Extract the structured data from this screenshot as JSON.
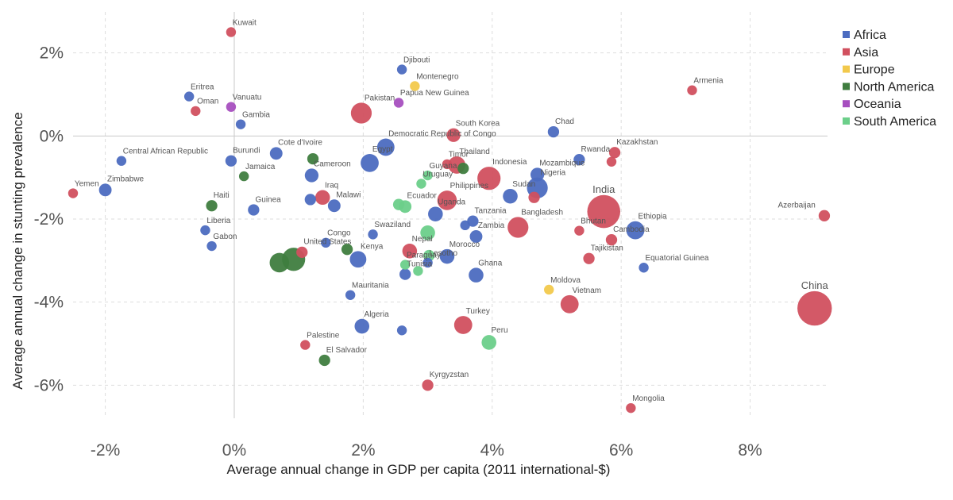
{
  "chart_data": {
    "type": "scatter",
    "xlabel": "Average annual change in GDP per capita (2011 international-$)",
    "ylabel": "Average annual change in stunting prevalence",
    "xlim": [
      -2.5,
      9.2
    ],
    "ylim": [
      -6.7,
      2.7
    ],
    "x_ticks": [
      -2,
      0,
      2,
      4,
      6,
      8
    ],
    "y_ticks": [
      2,
      0,
      -2,
      -4,
      -6
    ],
    "x_tick_labels": [
      "-2%",
      "0%",
      "2%",
      "4%",
      "6%",
      "8%"
    ],
    "y_tick_labels": [
      "2%",
      "0%",
      "-2%",
      "-4%",
      "-6%"
    ],
    "grid": true,
    "point_size": "population",
    "legend": {
      "placement": "top-right",
      "entries": [
        {
          "name": "Africa",
          "color": "#4c6cc0"
        },
        {
          "name": "Asia",
          "color": "#d1505f"
        },
        {
          "name": "Europe",
          "color": "#f2c94c"
        },
        {
          "name": "North America",
          "color": "#3f7d3f"
        },
        {
          "name": "Oceania",
          "color": "#a64fbf"
        },
        {
          "name": "South America",
          "color": "#6ccf8a"
        }
      ]
    },
    "points": [
      {
        "label": "Kuwait",
        "x": -0.05,
        "y": 2.5,
        "region": "Asia",
        "size": 1
      },
      {
        "label": "Djibouti",
        "x": 2.6,
        "y": 1.6,
        "region": "Africa",
        "size": 1
      },
      {
        "label": "Montenegro",
        "x": 2.8,
        "y": 1.2,
        "region": "Europe",
        "size": 1
      },
      {
        "label": "Armenia",
        "x": 7.1,
        "y": 1.1,
        "region": "Asia",
        "size": 1
      },
      {
        "label": "Eritrea",
        "x": -0.7,
        "y": 0.95,
        "region": "Africa",
        "size": 1
      },
      {
        "label": "Papua New Guinea",
        "x": 2.55,
        "y": 0.8,
        "region": "Oceania",
        "size": 1
      },
      {
        "label": "Vanuatu",
        "x": -0.05,
        "y": 0.7,
        "region": "Oceania",
        "size": 1
      },
      {
        "label": "Oman",
        "x": -0.6,
        "y": 0.6,
        "region": "Asia",
        "size": 1
      },
      {
        "label": "Pakistan",
        "x": 1.97,
        "y": 0.55,
        "region": "Asia",
        "size": 7
      },
      {
        "label": "Gambia",
        "x": 0.1,
        "y": 0.28,
        "region": "Africa",
        "size": 1
      },
      {
        "label": "Chad",
        "x": 4.95,
        "y": 0.1,
        "region": "Africa",
        "size": 1.5
      },
      {
        "label": "South Korea",
        "x": 3.4,
        "y": 0.02,
        "region": "Asia",
        "size": 2.5
      },
      {
        "label": "Democratic Republic of Congo",
        "x": 2.35,
        "y": -0.27,
        "region": "Africa",
        "size": 4.5
      },
      {
        "label": "Kazakhstan",
        "x": 5.9,
        "y": -0.4,
        "region": "Asia",
        "size": 1.5
      },
      {
        "label": "Central African Republic",
        "x": -1.75,
        "y": -0.6,
        "region": "Africa",
        "size": 1
      },
      {
        "label": "Cote d'Ivoire",
        "x": 0.65,
        "y": -0.42,
        "region": "Africa",
        "size": 2
      },
      {
        "label": "Burundi",
        "x": -0.05,
        "y": -0.6,
        "region": "Africa",
        "size": 1.5
      },
      {
        "label": "Egypt",
        "x": 2.1,
        "y": -0.65,
        "region": "Africa",
        "size": 5
      },
      {
        "label": "Timor",
        "x": 3.3,
        "y": -0.68,
        "region": "Asia",
        "size": 1
      },
      {
        "label": "Thailand",
        "x": 3.45,
        "y": -0.7,
        "region": "Asia",
        "size": 4.5
      },
      {
        "label": "Rwanda",
        "x": 5.35,
        "y": -0.57,
        "region": "Africa",
        "size": 1.5
      },
      {
        "label": "Jamaica",
        "x": 0.15,
        "y": -0.97,
        "region": "North America",
        "size": 1
      },
      {
        "label": "Cameroon",
        "x": 1.2,
        "y": -0.95,
        "region": "Africa",
        "size": 2.5
      },
      {
        "label": "Guyana",
        "x": 3.0,
        "y": -0.95,
        "region": "South America",
        "size": 1
      },
      {
        "label": "Indonesia",
        "x": 3.95,
        "y": -1.02,
        "region": "Asia",
        "size": 9
      },
      {
        "label": "Mozambique",
        "x": 4.7,
        "y": -0.93,
        "region": "Africa",
        "size": 2.5
      },
      {
        "label": "Uruguay",
        "x": 2.9,
        "y": -1.15,
        "region": "South America",
        "size": 1
      },
      {
        "label": "Yemen",
        "x": -2.5,
        "y": -1.38,
        "region": "Asia",
        "size": 1
      },
      {
        "label": "Zimbabwe",
        "x": -2.0,
        "y": -1.3,
        "region": "Africa",
        "size": 2
      },
      {
        "label": "Nigeria",
        "x": 4.7,
        "y": -1.25,
        "region": "Africa",
        "size": 7
      },
      {
        "label": "Iraq",
        "x": 1.37,
        "y": -1.48,
        "region": "Asia",
        "size": 3
      },
      {
        "label": "Sudan",
        "x": 4.28,
        "y": -1.45,
        "region": "Africa",
        "size": 3
      },
      {
        "label": "Philippines",
        "x": 3.3,
        "y": -1.55,
        "region": "Asia",
        "size": 6
      },
      {
        "label": "Haiti",
        "x": -0.35,
        "y": -1.68,
        "region": "North America",
        "size": 1.5
      },
      {
        "label": "Malawi",
        "x": 1.55,
        "y": -1.68,
        "region": "Africa",
        "size": 2
      },
      {
        "label": "Guinea",
        "x": 0.3,
        "y": -1.78,
        "region": "Africa",
        "size": 1.5
      },
      {
        "label": "Ecuador",
        "x": 2.65,
        "y": -1.7,
        "region": "South America",
        "size": 2
      },
      {
        "label": "India",
        "x": 5.73,
        "y": -1.82,
        "region": "Asia",
        "size": 20
      },
      {
        "label": "Azerbaijan",
        "x": 9.15,
        "y": -1.92,
        "region": "Asia",
        "size": 1.5
      },
      {
        "label": "Uganda",
        "x": 3.12,
        "y": -1.88,
        "region": "Africa",
        "size": 3
      },
      {
        "label": "Tanzania",
        "x": 3.7,
        "y": -2.05,
        "region": "Africa",
        "size": 1.5
      },
      {
        "label": "Bangladesh",
        "x": 4.4,
        "y": -2.2,
        "region": "Asia",
        "size": 7
      },
      {
        "label": "Liberia",
        "x": -0.45,
        "y": -2.27,
        "region": "Africa",
        "size": 1
      },
      {
        "label": "Swaziland",
        "x": 2.15,
        "y": -2.37,
        "region": "Africa",
        "size": 1
      },
      {
        "label": "Zambia",
        "x": 3.75,
        "y": -2.42,
        "region": "Africa",
        "size": 2
      },
      {
        "label": "Bhutan",
        "x": 5.35,
        "y": -2.28,
        "region": "Asia",
        "size": 1
      },
      {
        "label": "Ethiopia",
        "x": 6.22,
        "y": -2.27,
        "region": "Africa",
        "size": 5
      },
      {
        "label": "Gabon",
        "x": -0.35,
        "y": -2.65,
        "region": "Africa",
        "size": 1
      },
      {
        "label": "Congo",
        "x": 1.42,
        "y": -2.57,
        "region": "Africa",
        "size": 1
      },
      {
        "label": "Cambodia",
        "x": 5.85,
        "y": -2.5,
        "region": "Asia",
        "size": 1.5
      },
      {
        "label": "United States",
        "x": 1.05,
        "y": -2.8,
        "region": "Asia",
        "size": 1.5
      },
      {
        "label": "Nepal",
        "x": 2.72,
        "y": -2.77,
        "region": "Asia",
        "size": 3
      },
      {
        "label": "Kenya",
        "x": 1.92,
        "y": -2.97,
        "region": "Africa",
        "size": 4
      },
      {
        "label": "Morocco",
        "x": 3.3,
        "y": -2.9,
        "region": "Africa",
        "size": 3
      },
      {
        "label": "Lesotho",
        "x": 3.0,
        "y": -3.05,
        "region": "Africa",
        "size": 1
      },
      {
        "label": "Tajikistan",
        "x": 5.5,
        "y": -2.95,
        "region": "Asia",
        "size": 1.5
      },
      {
        "label": "Paraguay",
        "x": 2.65,
        "y": -3.1,
        "region": "South America",
        "size": 1
      },
      {
        "label": "Equatorial Guinea",
        "x": 6.35,
        "y": -3.17,
        "region": "Africa",
        "size": 1
      },
      {
        "label": "Tunisia",
        "x": 2.65,
        "y": -3.33,
        "region": "Africa",
        "size": 1.5
      },
      {
        "label": "Ghana",
        "x": 3.75,
        "y": -3.35,
        "region": "Africa",
        "size": 3
      },
      {
        "label": "Moldova",
        "x": 4.88,
        "y": -3.7,
        "region": "Europe",
        "size": 1
      },
      {
        "label": "Mauritania",
        "x": 1.8,
        "y": -3.83,
        "region": "Africa",
        "size": 1
      },
      {
        "label": "Vietnam",
        "x": 5.2,
        "y": -4.05,
        "region": "Asia",
        "size": 5
      },
      {
        "label": "China",
        "x": 9.0,
        "y": -4.15,
        "region": "Asia",
        "size": 22
      },
      {
        "label": "Algeria",
        "x": 1.98,
        "y": -4.58,
        "region": "Africa",
        "size": 3
      },
      {
        "label": "Turkey",
        "x": 3.55,
        "y": -4.55,
        "region": "Asia",
        "size": 5
      },
      {
        "label": "Peru",
        "x": 3.95,
        "y": -4.97,
        "region": "South America",
        "size": 3
      },
      {
        "label": "Palestine",
        "x": 1.1,
        "y": -5.03,
        "region": "Asia",
        "size": 1
      },
      {
        "label": "El Salvador",
        "x": 1.4,
        "y": -5.4,
        "region": "North America",
        "size": 1.5
      },
      {
        "label": "Kyrgyzstan",
        "x": 3.0,
        "y": -6.0,
        "region": "Asia",
        "size": 1.5
      },
      {
        "label": "Mongolia",
        "x": 6.15,
        "y": -6.55,
        "region": "Asia",
        "size": 1
      }
    ],
    "unlabeled_points": [
      {
        "x": 1.22,
        "y": -0.55,
        "region": "North America",
        "size": 1.5
      },
      {
        "x": 3.55,
        "y": -0.78,
        "region": "North America",
        "size": 1.5
      },
      {
        "x": 5.85,
        "y": -0.62,
        "region": "Asia",
        "size": 1
      },
      {
        "x": 4.65,
        "y": -1.48,
        "region": "Asia",
        "size": 1.5
      },
      {
        "x": 2.55,
        "y": -1.65,
        "region": "South America",
        "size": 1.5
      },
      {
        "x": 1.18,
        "y": -1.53,
        "region": "Africa",
        "size": 1.5
      },
      {
        "x": 3.58,
        "y": -2.15,
        "region": "Africa",
        "size": 1
      },
      {
        "x": 3.0,
        "y": -2.33,
        "region": "South America",
        "size": 3
      },
      {
        "x": 1.75,
        "y": -2.73,
        "region": "North America",
        "size": 1.5
      },
      {
        "x": 0.7,
        "y": -3.05,
        "region": "North America",
        "size": 6
      },
      {
        "x": 0.92,
        "y": -2.97,
        "region": "North America",
        "size": 9
      },
      {
        "x": 3.02,
        "y": -2.88,
        "region": "South America",
        "size": 1.5
      },
      {
        "x": 2.85,
        "y": -3.25,
        "region": "South America",
        "size": 1
      },
      {
        "x": 2.6,
        "y": -4.68,
        "region": "Africa",
        "size": 1
      }
    ]
  }
}
